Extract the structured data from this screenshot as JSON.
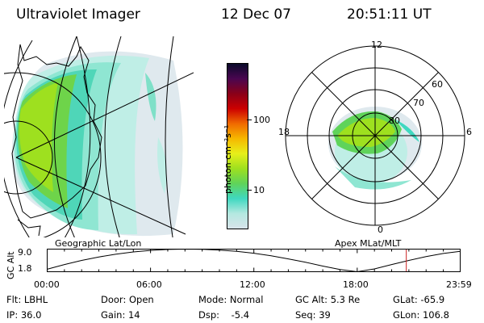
{
  "header": {
    "title": "Ultraviolet Imager",
    "date": "12 Dec 07",
    "time": "20:51:11 UT"
  },
  "colorbar": {
    "unit_label": "photon cm⁻²s⁻¹",
    "tick_labels": [
      "100",
      "10"
    ],
    "colors": [
      "#d8e4ea",
      "#b4e8e0",
      "#3fd8c0",
      "#5fd35a",
      "#9ee01f",
      "#e7ef1a",
      "#f6b800",
      "#f06a00",
      "#cc0000",
      "#8a0018",
      "#4a0650",
      "#0a0a2a"
    ]
  },
  "left_panel": {
    "label": "Geographic Lat/Lon"
  },
  "right_panel": {
    "label": "Apex  MLat/MLT",
    "mlt_labels": [
      "12",
      "18",
      "6",
      "0"
    ],
    "mlat_labels": [
      "60",
      "70",
      "80"
    ]
  },
  "chart_data": {
    "type": "line",
    "title": "",
    "ylabel": "GC Alt",
    "y_tick_labels": [
      "9.0",
      "1.8"
    ],
    "ylim": [
      1.8,
      9.0
    ],
    "x_tick_labels": [
      "00:00",
      "06:00",
      "12:00",
      "18:00",
      "23:59"
    ],
    "xlim_hours": [
      0,
      23.98
    ],
    "series": [
      {
        "name": "GC Alt",
        "x_hours": [
          0,
          1,
          2,
          3,
          4,
          5,
          6,
          7,
          8,
          9,
          10,
          11,
          12,
          13,
          14,
          15,
          16,
          17,
          18,
          19,
          20,
          21,
          22,
          23,
          23.98
        ],
        "values": [
          2.6,
          4.1,
          5.4,
          6.5,
          7.4,
          8.1,
          8.6,
          8.9,
          9.0,
          8.95,
          8.7,
          8.3,
          7.7,
          6.9,
          5.9,
          4.8,
          3.6,
          2.5,
          1.8,
          2.7,
          4.1,
          5.4,
          6.6,
          7.6,
          8.3
        ]
      }
    ],
    "marker_hour": 20.85,
    "marker_color": "#cc2222"
  },
  "footer": {
    "rows": [
      [
        "Flt: LBHL",
        "Door: Open",
        "Mode: Normal",
        "GC Alt: 5.3 Re",
        "GLat: -65.9"
      ],
      [
        "IP: 36.0",
        "Gain: 14",
        "Dsp:    -5.4",
        "Seq: 39",
        "GLon: 106.8"
      ]
    ]
  }
}
